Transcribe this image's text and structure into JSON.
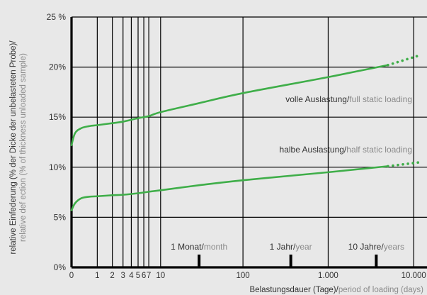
{
  "chart_data": {
    "type": "line",
    "x_scale": "log1p",
    "y_unit": "%",
    "ylim": [
      0,
      25
    ],
    "y_ticks": [
      0,
      5,
      10,
      15,
      20,
      25
    ],
    "y_tick_labels": [
      "0%",
      "5%",
      "10%",
      "15%",
      "20%",
      "25 %"
    ],
    "x_tick_values": [
      0,
      1,
      2,
      3,
      4,
      5,
      6,
      7,
      10,
      100,
      1000,
      10000
    ],
    "x_tick_labels": [
      "0",
      "1",
      "2",
      "3",
      "4",
      "5",
      "6",
      "7",
      "10",
      "100",
      "1.000",
      "10.000"
    ],
    "ylabel_line1": "relative Einfederung (% der Dicke der unbelasteten Probe)/",
    "ylabel_line2": "relative def ection (% of thickness unloaded sample)",
    "xlabel_main": "Belastungsdauer (Tage)/",
    "xlabel_sub": "period of loading (days)",
    "time_markers": [
      {
        "value": 30,
        "label_main": "1 Monat/",
        "label_sub": "month"
      },
      {
        "value": 365,
        "label_main": "1 Jahr/",
        "label_sub": "year"
      },
      {
        "value": 3650,
        "label_main": "10 Jahre/",
        "label_sub": "years"
      }
    ],
    "series": [
      {
        "label_main": "volle Auslastung/",
        "label_sub": "full static loading",
        "color": "#3fae49",
        "points": [
          [
            0,
            12.2
          ],
          [
            0.1,
            13.4
          ],
          [
            0.3,
            13.9
          ],
          [
            0.6,
            14.1
          ],
          [
            1,
            14.2
          ],
          [
            2,
            14.4
          ],
          [
            3,
            14.55
          ],
          [
            5,
            14.9
          ],
          [
            7,
            15.1
          ],
          [
            10,
            15.5
          ],
          [
            30,
            16.4
          ],
          [
            100,
            17.4
          ],
          [
            1000,
            19.0
          ],
          [
            5000,
            20.2
          ]
        ],
        "extrapolated": [
          [
            5000,
            20.2
          ],
          [
            12000,
            21.2
          ]
        ]
      },
      {
        "label_main": "halbe Auslastung/",
        "label_sub": "half static loading",
        "color": "#3fae49",
        "points": [
          [
            0,
            5.7
          ],
          [
            0.1,
            6.4
          ],
          [
            0.3,
            6.9
          ],
          [
            0.6,
            7.05
          ],
          [
            1,
            7.1
          ],
          [
            2,
            7.2
          ],
          [
            3,
            7.25
          ],
          [
            5,
            7.4
          ],
          [
            7,
            7.55
          ],
          [
            10,
            7.7
          ],
          [
            30,
            8.2
          ],
          [
            100,
            8.7
          ],
          [
            1000,
            9.5
          ],
          [
            5000,
            10.1
          ]
        ],
        "extrapolated": [
          [
            5000,
            10.1
          ],
          [
            12000,
            10.5
          ]
        ]
      }
    ]
  },
  "colors": {
    "background": "#e8e8e8",
    "axis": "#000000",
    "line": "#3fae49",
    "sub_text": "#8a8a8a",
    "main_text": "#333333"
  }
}
